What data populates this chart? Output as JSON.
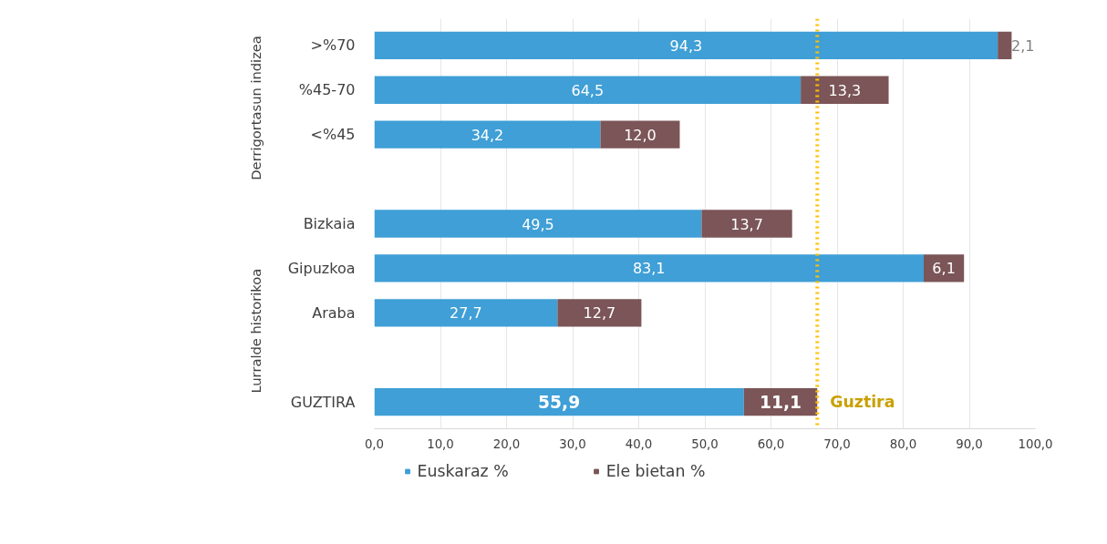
{
  "chart_data": {
    "type": "bar",
    "orientation": "horizontal",
    "stacked": true,
    "categories": [
      ">%70",
      "%45-70",
      "<%45",
      null,
      "Bizkaia",
      "Gipuzkoa",
      "Araba",
      null,
      "GUZTIRA"
    ],
    "series": [
      {
        "name": "Euskaraz %",
        "color": "#3f9fd6",
        "values": [
          94.3,
          64.5,
          34.2,
          null,
          49.5,
          83.1,
          27.7,
          null,
          55.9
        ],
        "value_labels": [
          "94,3",
          "64,5",
          "34,2",
          null,
          "49,5",
          "83,1",
          "27,7",
          null,
          "55,9"
        ]
      },
      {
        "name": "Ele bietan %",
        "color": "#7b5557",
        "values": [
          2.1,
          13.3,
          12.0,
          null,
          13.7,
          6.1,
          12.7,
          null,
          11.1
        ],
        "value_labels": [
          "2,1",
          "13,3",
          "12,0",
          null,
          "13,7",
          "6,1",
          "12,7",
          null,
          "11,1"
        ]
      }
    ],
    "xlim": [
      0,
      100
    ],
    "xticks": [
      {
        "value": 0,
        "label": "0,0"
      },
      {
        "value": 10,
        "label": "10,0"
      },
      {
        "value": 20,
        "label": "20,0"
      },
      {
        "value": 30,
        "label": "30,0"
      },
      {
        "value": 40,
        "label": "40,0"
      },
      {
        "value": 50,
        "label": "50,0"
      },
      {
        "value": 60,
        "label": "60,0"
      },
      {
        "value": 70,
        "label": "70,0"
      },
      {
        "value": 80,
        "label": "80,0"
      },
      {
        "value": 90,
        "label": "90,0"
      },
      {
        "value": 100,
        "label": "100,0"
      }
    ],
    "grid": "x",
    "legend": "bottom",
    "ref_lines": [
      {
        "axis": "x",
        "value": 67.0,
        "label": "Guztira",
        "color": "#ffc000",
        "line_style": "dotted"
      }
    ],
    "annotations": [
      "Derrigortasun indizea",
      "Lurralde historikoa"
    ]
  }
}
